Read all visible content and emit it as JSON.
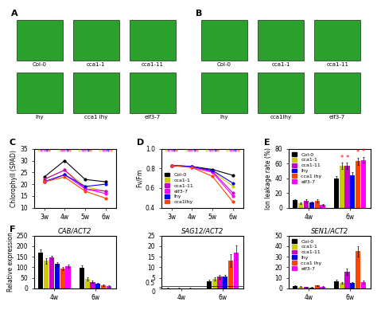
{
  "chart_data": [
    {
      "type": "photo",
      "annotations": [
        {
          "text": "A"
        }
      ],
      "categories": [
        "Col-0",
        "cca1-1",
        "cca1-11",
        "lhy",
        "cca1 lhy",
        "elf3-7"
      ]
    },
    {
      "type": "photo",
      "annotations": [
        {
          "text": "B"
        }
      ],
      "categories": [
        "Col-0",
        "cca1-1",
        "cca1-11",
        "lhy",
        "cca1lhy",
        "elf3-7"
      ]
    },
    {
      "type": "line",
      "ylabel": "Chlorophyll (SPAD)",
      "categories": [
        "3w",
        "4w",
        "5w",
        "6w"
      ],
      "ylim": [
        10,
        35
      ],
      "yticks": [
        10,
        15,
        20,
        25,
        30,
        35
      ],
      "series": [
        {
          "color": "#000000",
          "values": [
            23,
            30,
            22,
            21
          ]
        },
        {
          "color": "#cccc00",
          "values": [
            22,
            26,
            19,
            17
          ]
        },
        {
          "color": "#cc00cc",
          "values": [
            22,
            26,
            18,
            17
          ]
        },
        {
          "color": "#ff00ff",
          "values": [
            21,
            24,
            18,
            16
          ]
        },
        {
          "color": "#0000ff",
          "values": [
            21,
            24,
            19,
            20
          ]
        },
        {
          "color": "#ff4400",
          "values": [
            21,
            23,
            17,
            14
          ]
        }
      ],
      "annotations": [
        {
          "text": "C"
        },
        {
          "text": "*",
          "category": "3w",
          "color": "#cccc00"
        },
        {
          "text": "*",
          "category": "3w",
          "color": "#cc00cc"
        },
        {
          "text": "*",
          "category": "3w",
          "color": "#ff00ff"
        },
        {
          "text": "*",
          "category": "3w",
          "color": "#0000ff"
        },
        {
          "text": "*",
          "category": "3w",
          "color": "#ff4400"
        },
        {
          "text": "*",
          "category": "4w",
          "color": "#cccc00"
        },
        {
          "text": "*",
          "category": "4w",
          "color": "#cc00cc"
        },
        {
          "text": "*",
          "category": "4w",
          "color": "#ff00ff"
        },
        {
          "text": "*",
          "category": "4w",
          "color": "#0000ff"
        },
        {
          "text": "*",
          "category": "4w",
          "color": "#ff4400"
        },
        {
          "text": "*",
          "category": "5w",
          "color": "#cccc00"
        },
        {
          "text": "*",
          "category": "5w",
          "color": "#cc00cc"
        },
        {
          "text": "*",
          "category": "5w",
          "color": "#ff00ff"
        },
        {
          "text": "*",
          "category": "5w",
          "color": "#0000ff"
        },
        {
          "text": "*",
          "category": "5w",
          "color": "#ff4400"
        },
        {
          "text": "*",
          "category": "6w",
          "color": "#cccc00"
        },
        {
          "text": "*",
          "category": "6w",
          "color": "#cc00cc"
        },
        {
          "text": "*",
          "category": "6w",
          "color": "#ff00ff"
        },
        {
          "text": "*",
          "category": "6w",
          "color": "#0000ff"
        },
        {
          "text": "*",
          "category": "6w",
          "color": "#ff4400"
        }
      ]
    },
    {
      "type": "line",
      "ylabel": "Fv/Fm",
      "categories": [
        "3w",
        "4w",
        "5w",
        "6w"
      ],
      "ylim": [
        0.4,
        1.0
      ],
      "yticks": [
        0.4,
        0.6,
        0.8,
        {
          "value": 1,
          "label": "1.0"
        }
      ],
      "legend": "lower left",
      "series": [
        {
          "name": "Col-0",
          "color": "#000000",
          "values": [
            0.83,
            0.82,
            0.79,
            0.73
          ]
        },
        {
          "name": "cca1-1",
          "color": "#cccc00",
          "values": [
            0.83,
            0.82,
            0.77,
            0.62
          ]
        },
        {
          "name": "cca1-11",
          "color": "#cc00cc",
          "values": [
            0.83,
            0.82,
            0.77,
            0.55
          ]
        },
        {
          "name": "elf3-7",
          "color": "#ff00ff",
          "values": [
            0.83,
            0.81,
            0.76,
            0.52
          ]
        },
        {
          "name": "lhy",
          "color": "#0000ff",
          "values": [
            0.83,
            0.82,
            0.78,
            0.65
          ]
        },
        {
          "name": "cca1lhy",
          "color": "#ff4400",
          "values": [
            0.83,
            0.81,
            0.72,
            0.46
          ]
        }
      ],
      "annotations": [
        {
          "text": "D"
        },
        {
          "text": "*",
          "category": "3w",
          "color": "#cccc00"
        },
        {
          "text": "*",
          "category": "3w",
          "color": "#cc00cc"
        },
        {
          "text": "*",
          "category": "3w",
          "color": "#ff00ff"
        },
        {
          "text": "*",
          "category": "3w",
          "color": "#0000ff"
        },
        {
          "text": "*",
          "category": "3w",
          "color": "#ff4400"
        },
        {
          "text": "*",
          "category": "4w",
          "color": "#cccc00"
        },
        {
          "text": "*",
          "category": "4w",
          "color": "#cc00cc"
        },
        {
          "text": "*",
          "category": "4w",
          "color": "#ff00ff"
        },
        {
          "text": "*",
          "category": "4w",
          "color": "#0000ff"
        },
        {
          "text": "*",
          "category": "4w",
          "color": "#ff4400"
        },
        {
          "text": "*",
          "category": "5w",
          "color": "#cccc00"
        },
        {
          "text": "*",
          "category": "5w",
          "color": "#cc00cc"
        },
        {
          "text": "*",
          "category": "5w",
          "color": "#ff00ff"
        },
        {
          "text": "*",
          "category": "5w",
          "color": "#0000ff"
        },
        {
          "text": "*",
          "category": "5w",
          "color": "#ff4400"
        },
        {
          "text": "*",
          "category": "6w",
          "color": "#cccc00"
        },
        {
          "text": "*",
          "category": "6w",
          "color": "#cc00cc"
        },
        {
          "text": "*",
          "category": "6w",
          "color": "#ff00ff"
        },
        {
          "text": "*",
          "category": "6w",
          "color": "#0000ff"
        },
        {
          "text": "*",
          "category": "6w",
          "color": "#ff4400"
        }
      ]
    },
    {
      "type": "bar",
      "ylabel": "Ion leakage rate (%)",
      "categories": [
        "4w",
        "6w"
      ],
      "ylim": [
        0,
        80
      ],
      "yticks": [
        0,
        20,
        40,
        60,
        80
      ],
      "legend": "upper left",
      "series": [
        {
          "name": "Col-0",
          "color": "#000000",
          "values": [
            10,
            40
          ],
          "errors": [
            2,
            3
          ]
        },
        {
          "name": "cca1-1",
          "color": "#cccc00",
          "values": [
            6,
            57
          ],
          "errors": [
            1,
            4
          ]
        },
        {
          "name": "cca1-11",
          "color": "#cc00cc",
          "values": [
            9,
            57
          ],
          "errors": [
            2,
            4
          ]
        },
        {
          "name": "lhy",
          "color": "#0000ff",
          "values": [
            7,
            44
          ],
          "errors": [
            1.5,
            4
          ]
        },
        {
          "name": "cca1 lhy",
          "color": "#ff4400",
          "values": [
            9,
            63
          ],
          "errors": [
            2,
            5
          ]
        },
        {
          "name": "elf3-7",
          "color": "#ff00ff",
          "values": [
            4,
            65
          ],
          "errors": [
            1,
            4
          ]
        }
      ],
      "annotations": [
        {
          "text": "E"
        },
        {
          "text": "*",
          "category": "6w",
          "series": "cca1-1",
          "color": "red"
        },
        {
          "text": "*",
          "category": "6w",
          "series": "cca1-11",
          "color": "red"
        },
        {
          "text": "*",
          "category": "6w",
          "series": "cca1 lhy",
          "color": "red"
        },
        {
          "text": "*",
          "category": "6w",
          "series": "elf3-7",
          "color": "red"
        }
      ]
    },
    {
      "type": "bar",
      "title": "CAB/ACT2",
      "ylabel": "Relative expression",
      "categories": [
        "4w",
        "6w"
      ],
      "ylim": [
        0,
        250
      ],
      "yticks": [
        0,
        50,
        100,
        150,
        200,
        250
      ],
      "series": [
        {
          "color": "#000000",
          "values": [
            170,
            98
          ],
          "errors": [
            15,
            10
          ]
        },
        {
          "color": "#cccc00",
          "values": [
            130,
            45
          ],
          "errors": [
            12,
            8
          ]
        },
        {
          "color": "#cc00cc",
          "values": [
            145,
            30
          ],
          "errors": [
            10,
            6
          ]
        },
        {
          "color": "#0000ff",
          "values": [
            115,
            22
          ],
          "errors": [
            10,
            5
          ]
        },
        {
          "color": "#ff4400",
          "values": [
            95,
            15
          ],
          "errors": [
            8,
            4
          ]
        },
        {
          "color": "#ff00ff",
          "values": [
            105,
            10
          ],
          "errors": [
            8,
            3
          ]
        }
      ],
      "annotations": [
        {
          "text": "F"
        }
      ]
    },
    {
      "type": "bar",
      "title": "SAG12/ACT2",
      "categories": [
        "4w",
        "6w"
      ],
      "ylim": [
        0,
        25
      ],
      "yticks": [
        0,
        0.5,
        5,
        10,
        15,
        20,
        25
      ],
      "hline": 1.0,
      "series": [
        {
          "color": "#000000",
          "values": [
            0.1,
            3.5
          ],
          "errors": [
            0.05,
            0.5
          ]
        },
        {
          "color": "#cccc00",
          "values": [
            0.05,
            4.5
          ],
          "errors": [
            0.02,
            0.8
          ]
        },
        {
          "color": "#cc00cc",
          "values": [
            0.08,
            5.5
          ],
          "errors": [
            0.03,
            1.0
          ]
        },
        {
          "color": "#0000ff",
          "values": [
            0.06,
            5.5
          ],
          "errors": [
            0.02,
            1.0
          ]
        },
        {
          "color": "#ff4400",
          "values": [
            0.1,
            13
          ],
          "errors": [
            0.04,
            3.0
          ]
        },
        {
          "color": "#ff00ff",
          "values": [
            0.05,
            17
          ],
          "errors": [
            0.02,
            3.5
          ]
        }
      ]
    },
    {
      "type": "bar",
      "title": "SEN1/ACT2",
      "categories": [
        "4w",
        "6w"
      ],
      "ylim": [
        0,
        50
      ],
      "yticks": [
        0,
        10,
        20,
        30,
        40,
        50
      ],
      "legend": "upper left",
      "series": [
        {
          "name": "Col-0",
          "color": "#000000",
          "values": [
            2,
            7
          ],
          "errors": [
            0.5,
            1.5
          ]
        },
        {
          "name": "cca1-1",
          "color": "#cccc00",
          "values": [
            1.5,
            5
          ],
          "errors": [
            0.4,
            1.0
          ]
        },
        {
          "name": "cca1-11",
          "color": "#cc00cc",
          "values": [
            1,
            16
          ],
          "errors": [
            0.3,
            3.0
          ]
        },
        {
          "name": "lhy",
          "color": "#0000ff",
          "values": [
            0.8,
            5
          ],
          "errors": [
            0.3,
            1.0
          ]
        },
        {
          "name": "cca1 lhy",
          "color": "#ff4400",
          "values": [
            2.5,
            35
          ],
          "errors": [
            0.6,
            5.0
          ]
        },
        {
          "name": "elf3-7",
          "color": "#ff00ff",
          "values": [
            1.5,
            6
          ],
          "errors": [
            0.4,
            1.5
          ]
        }
      ]
    }
  ]
}
